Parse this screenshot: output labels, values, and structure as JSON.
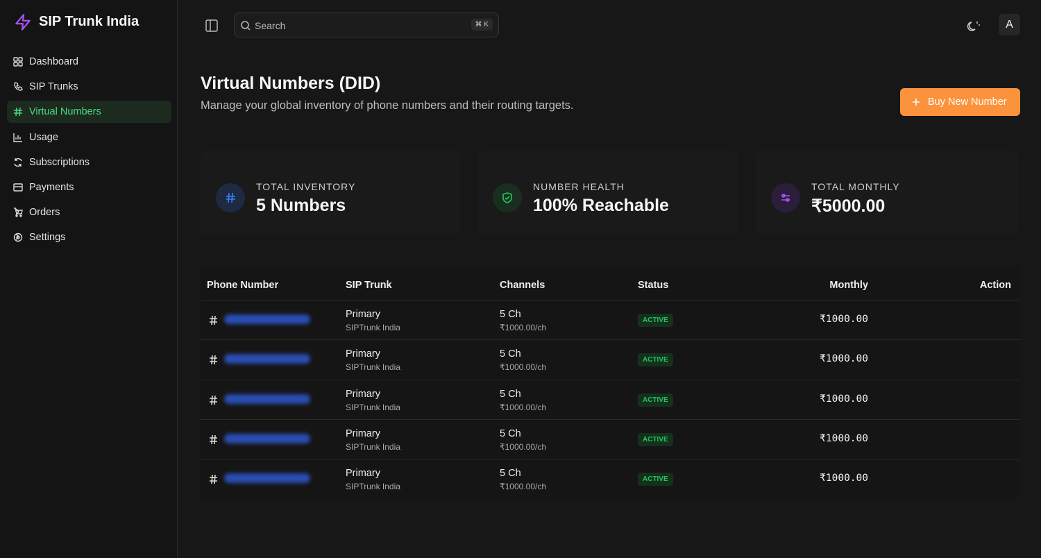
{
  "brand": "SIP Trunk India",
  "nav": [
    "Dashboard",
    "SIP Trunks",
    "Virtual Numbers",
    "Usage",
    "Subscriptions",
    "Payments",
    "Orders",
    "Settings"
  ],
  "search": {
    "placeholder": "Search",
    "shortcut": "⌘ K"
  },
  "avatar": "A",
  "header": {
    "title": "Virtual Numbers (DID)",
    "subtitle": "Manage your global inventory of phone numbers and their routing targets.",
    "button": "Buy New Number"
  },
  "stats": [
    {
      "label": "TOTAL INVENTORY",
      "value": "5 Numbers"
    },
    {
      "label": "NUMBER HEALTH",
      "value": "100% Reachable"
    },
    {
      "label": "TOTAL MONTHLY",
      "value": "₹5000.00"
    }
  ],
  "table": {
    "headers": [
      "Phone Number",
      "SIP Trunk",
      "Channels",
      "Status",
      "Monthly",
      "Action"
    ],
    "rows": [
      {
        "trunk": "Primary",
        "provider": "SIPTrunk India",
        "channels": "5 Ch",
        "rate": "₹1000.00/ch",
        "status": "ACTIVE",
        "monthly": "₹1000.00"
      },
      {
        "trunk": "Primary",
        "provider": "SIPTrunk India",
        "channels": "5 Ch",
        "rate": "₹1000.00/ch",
        "status": "ACTIVE",
        "monthly": "₹1000.00"
      },
      {
        "trunk": "Primary",
        "provider": "SIPTrunk India",
        "channels": "5 Ch",
        "rate": "₹1000.00/ch",
        "status": "ACTIVE",
        "monthly": "₹1000.00"
      },
      {
        "trunk": "Primary",
        "provider": "SIPTrunk India",
        "channels": "5 Ch",
        "rate": "₹1000.00/ch",
        "status": "ACTIVE",
        "monthly": "₹1000.00"
      },
      {
        "trunk": "Primary",
        "provider": "SIPTrunk India",
        "channels": "5 Ch",
        "rate": "₹1000.00/ch",
        "status": "ACTIVE",
        "monthly": "₹1000.00"
      }
    ]
  }
}
